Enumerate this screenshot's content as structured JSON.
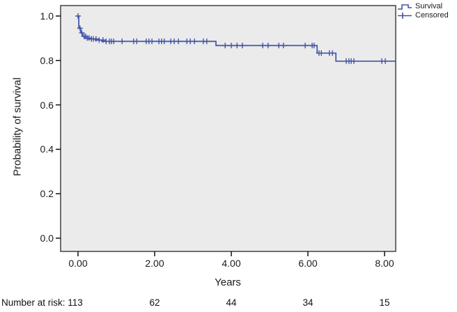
{
  "chart_data": {
    "type": "line",
    "variant": "kaplan_meier_step",
    "title": "",
    "xlabel": "Years",
    "ylabel": "Probability of survival",
    "xlim": [
      -0.45,
      8.3
    ],
    "ylim": [
      -0.06,
      1.05
    ],
    "grid": false,
    "colors": {
      "series": "#4353a5",
      "plot_background": "#ebebeb",
      "frame": "#4c4c4c",
      "tick": "#111111"
    },
    "x_ticks": [
      {
        "label": "0.00",
        "value": 0
      },
      {
        "label": "2.00",
        "value": 2
      },
      {
        "label": "4.00",
        "value": 4
      },
      {
        "label": "6.00",
        "value": 6
      },
      {
        "label": "8.00",
        "value": 8
      }
    ],
    "y_ticks": [
      {
        "label": "0.0",
        "value": 0.0
      },
      {
        "label": "0.2",
        "value": 0.2
      },
      {
        "label": "0.4",
        "value": 0.4
      },
      {
        "label": "0.6",
        "value": 0.6
      },
      {
        "label": "0.8",
        "value": 0.8
      },
      {
        "label": "1.0",
        "value": 1.0
      }
    ],
    "legend": {
      "position": "top-right-outside",
      "entries": [
        {
          "label": "Survival",
          "glyph": "step-line"
        },
        {
          "label": "Censored",
          "glyph": "plus"
        }
      ]
    },
    "series": [
      {
        "name": "Survival",
        "type": "step",
        "points": [
          [
            0,
            1.0
          ],
          [
            0.02,
            1.0
          ],
          [
            0.02,
            0.945
          ],
          [
            0.07,
            0.945
          ],
          [
            0.07,
            0.924
          ],
          [
            0.12,
            0.924
          ],
          [
            0.12,
            0.908
          ],
          [
            0.18,
            0.908
          ],
          [
            0.18,
            0.901
          ],
          [
            0.27,
            0.901
          ],
          [
            0.27,
            0.897
          ],
          [
            0.45,
            0.897
          ],
          [
            0.45,
            0.892
          ],
          [
            0.62,
            0.892
          ],
          [
            0.62,
            0.886
          ],
          [
            3.6,
            0.886
          ],
          [
            3.6,
            0.867
          ],
          [
            6.24,
            0.867
          ],
          [
            6.24,
            0.833
          ],
          [
            6.73,
            0.833
          ],
          [
            6.73,
            0.797
          ],
          [
            8.29,
            0.797
          ]
        ]
      },
      {
        "name": "Censored",
        "type": "censor_marks",
        "points": [
          [
            0,
            1.0
          ],
          [
            0.05,
            0.945
          ],
          [
            0.1,
            0.924
          ],
          [
            0.16,
            0.908
          ],
          [
            0.2,
            0.908
          ],
          [
            0.24,
            0.901
          ],
          [
            0.29,
            0.901
          ],
          [
            0.35,
            0.897
          ],
          [
            0.4,
            0.897
          ],
          [
            0.47,
            0.897
          ],
          [
            0.55,
            0.892
          ],
          [
            0.65,
            0.892
          ],
          [
            0.73,
            0.886
          ],
          [
            0.82,
            0.886
          ],
          [
            0.87,
            0.886
          ],
          [
            0.93,
            0.886
          ],
          [
            1.15,
            0.886
          ],
          [
            1.45,
            0.886
          ],
          [
            1.53,
            0.886
          ],
          [
            1.78,
            0.886
          ],
          [
            1.85,
            0.886
          ],
          [
            1.93,
            0.886
          ],
          [
            2.11,
            0.886
          ],
          [
            2.18,
            0.886
          ],
          [
            2.25,
            0.886
          ],
          [
            2.42,
            0.886
          ],
          [
            2.51,
            0.886
          ],
          [
            2.62,
            0.886
          ],
          [
            2.84,
            0.886
          ],
          [
            2.93,
            0.886
          ],
          [
            3.04,
            0.886
          ],
          [
            3.27,
            0.886
          ],
          [
            3.36,
            0.886
          ],
          [
            3.84,
            0.867
          ],
          [
            4.0,
            0.867
          ],
          [
            4.15,
            0.867
          ],
          [
            4.29,
            0.867
          ],
          [
            4.82,
            0.867
          ],
          [
            4.96,
            0.867
          ],
          [
            5.24,
            0.867
          ],
          [
            5.36,
            0.867
          ],
          [
            5.93,
            0.867
          ],
          [
            6.11,
            0.867
          ],
          [
            6.16,
            0.867
          ],
          [
            6.29,
            0.833
          ],
          [
            6.35,
            0.833
          ],
          [
            6.56,
            0.833
          ],
          [
            6.64,
            0.833
          ],
          [
            7.0,
            0.797
          ],
          [
            7.07,
            0.797
          ],
          [
            7.13,
            0.797
          ],
          [
            7.2,
            0.797
          ],
          [
            7.93,
            0.797
          ],
          [
            8.02,
            0.797
          ]
        ]
      }
    ],
    "number_at_risk": {
      "label": "Number at risk: 113",
      "at_times": [
        2,
        4,
        6,
        8
      ],
      "values": [
        "62",
        "44",
        "34",
        "15"
      ]
    }
  }
}
